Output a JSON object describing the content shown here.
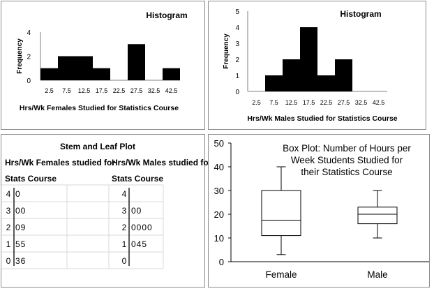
{
  "chart_data": [
    {
      "type": "bar",
      "title": "Histogram",
      "xlabel": "Hrs/Wk Females Studied for Statistics Course",
      "ylabel": "Frequency",
      "categories": [
        "2.5",
        "7.5",
        "12.5",
        "17.5",
        "22.5",
        "27.5",
        "32.5",
        "42.5"
      ],
      "values": [
        1,
        2,
        2,
        1,
        0,
        3,
        0,
        1
      ],
      "yticks": [
        "0",
        "2",
        "4"
      ],
      "ylim": [
        0,
        4
      ],
      "grid": false
    },
    {
      "type": "bar",
      "title": "Histogram",
      "xlabel": "Hrs/Wk Males Studied for Statistics Course",
      "ylabel": "Frequency",
      "categories": [
        "2.5",
        "7.5",
        "12.5",
        "17.5",
        "22.5",
        "27.5",
        "32.5",
        "42.5"
      ],
      "values": [
        0,
        1,
        2,
        4,
        1,
        2,
        0,
        0
      ],
      "yticks": [
        "0",
        "1",
        "2",
        "3",
        "4",
        "5"
      ],
      "ylim": [
        0,
        5
      ],
      "grid": false
    },
    {
      "type": "table",
      "title": "Stem and Leaf Plot",
      "headers": [
        "Hrs/Wk Females studied for Stats Course",
        "Hrs/Wk Males studied for Stats Course"
      ],
      "rows": [
        {
          "stem": "4",
          "left": "0",
          "right": ""
        },
        {
          "stem": "3",
          "left": "00",
          "right": "00"
        },
        {
          "stem": "2",
          "left": "09",
          "right": "0000"
        },
        {
          "stem": "1",
          "left": "55",
          "right": "045"
        },
        {
          "stem": "0",
          "left": "36",
          "right": ""
        }
      ]
    },
    {
      "type": "box",
      "title": "Box Plot: Number of Hours per Week Students Studied for their Statistics Course",
      "categories": [
        "Female",
        "Male"
      ],
      "ylim": [
        0,
        50
      ],
      "yticks": [
        "0",
        "10",
        "20",
        "30",
        "40",
        "50"
      ],
      "boxes": [
        {
          "min": 3,
          "q1": 11,
          "median": 17.5,
          "q3": 30,
          "max": 40
        },
        {
          "min": 10,
          "q1": 16,
          "median": 20,
          "q3": 23,
          "max": 30
        }
      ]
    }
  ]
}
